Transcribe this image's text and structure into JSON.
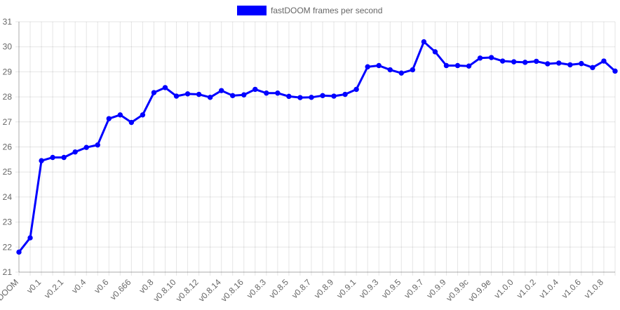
{
  "chart_data": {
    "type": "line",
    "title": "",
    "xlabel": "",
    "ylabel": "",
    "ylim": [
      21,
      31
    ],
    "yticks": [
      21,
      22,
      23,
      24,
      25,
      26,
      27,
      28,
      29,
      30,
      31
    ],
    "grid": true,
    "legend_position": "top",
    "categories": [
      "DOOM",
      "",
      "v0.1",
      "",
      "v0.2.1",
      "",
      "v0.4",
      "",
      "v0.6",
      "",
      "v0.666",
      "",
      "v0.8",
      "",
      "v0.8.10",
      "",
      "v0.8.12",
      "",
      "v0.8.14",
      "",
      "v0.8.16",
      "",
      "v0.8.3",
      "",
      "v0.8.5",
      "",
      "v0.8.7",
      "",
      "v0.8.9",
      "",
      "v0.9.1",
      "",
      "v0.9.3",
      "",
      "v0.9.5",
      "",
      "v0.9.7",
      "",
      "v0.9.9",
      "",
      "v0.9.9c",
      "",
      "v0.9.9e",
      "",
      "v1.0.0",
      "",
      "v1.0.2",
      "",
      "v1.0.4",
      "",
      "v1.0.6",
      "",
      "v1.0.8",
      ""
    ],
    "series": [
      {
        "name": "fastDOOM frames per second",
        "color": "#0000ff",
        "values": [
          21.8,
          22.37,
          25.45,
          25.58,
          25.58,
          25.8,
          25.98,
          26.08,
          27.13,
          27.28,
          26.98,
          27.28,
          28.17,
          28.37,
          28.03,
          28.12,
          28.1,
          27.98,
          28.25,
          28.05,
          28.08,
          28.3,
          28.15,
          28.15,
          28.02,
          27.97,
          27.98,
          28.05,
          28.03,
          28.1,
          28.3,
          29.2,
          29.25,
          29.08,
          28.95,
          29.08,
          30.2,
          29.8,
          29.25,
          29.25,
          29.23,
          29.55,
          29.57,
          29.43,
          29.4,
          29.38,
          29.42,
          29.32,
          29.35,
          29.28,
          29.33,
          29.17,
          29.43,
          29.03
        ]
      }
    ]
  }
}
